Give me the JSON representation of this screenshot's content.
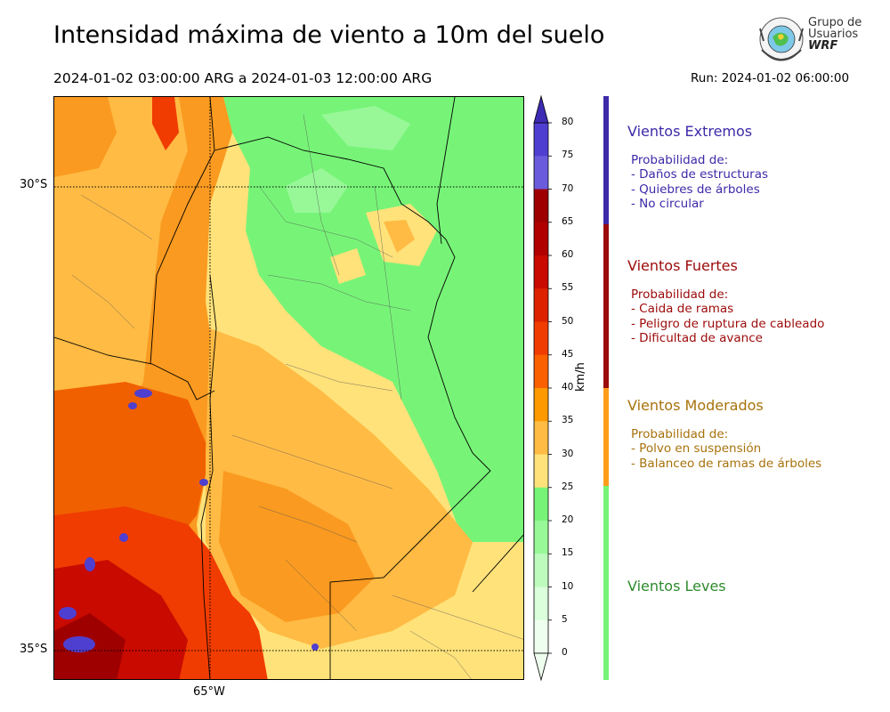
{
  "title": "Intensidad máxima de viento a 10m del suelo",
  "period": "2024-01-02 03:00:00 ARG  a  2024-01-03 12:00:00 ARG",
  "run": "Run: 2024-01-02 06:00:00",
  "logo": {
    "line1": "Grupo de",
    "line2": "Usuarios",
    "line3": "WRF"
  },
  "map": {
    "lat_labels": [
      "30°S",
      "35°S"
    ],
    "lon_labels": [
      "65°W"
    ]
  },
  "colorbar": {
    "unit": "km/h",
    "ticks": [
      "80",
      "75",
      "70",
      "65",
      "60",
      "55",
      "50",
      "45",
      "40",
      "35",
      "30",
      "25",
      "20",
      "15",
      "10",
      "5",
      "0"
    ],
    "colors": [
      "#3d2bb3",
      "#4f3fd0",
      "#6a5bdc",
      "#9e0000",
      "#b00000",
      "#c80a00",
      "#dd2200",
      "#f03c00",
      "#fa6000",
      "#ff9900",
      "#ffbb44",
      "#ffe27a",
      "#77f477",
      "#98f898",
      "#bdfbbd",
      "#daffda",
      "#efffef"
    ]
  },
  "categories": [
    {
      "title": "Vientos Extremos",
      "color": "#3c2aa8",
      "prob_title": "Probabilidad de:",
      "items": [
        "- Daños de estructuras",
        "- Quiebres de árboles",
        "- No circular"
      ]
    },
    {
      "title": "Vientos Fuertes",
      "color": "#9c0a0a",
      "prob_title": "Probabilidad de:",
      "items": [
        "- Caida de ramas",
        "- Peligro de ruptura de cableado",
        "- Dificultad de avance"
      ]
    },
    {
      "title": "Vientos Moderados",
      "color": "#a8720c",
      "prob_title": "Probabilidad de:",
      "items": [
        "- Polvo en suspensión",
        "- Balanceo de ramas de árboles"
      ]
    },
    {
      "title": "Vientos Leves",
      "color": "#2e8b2e"
    }
  ]
}
